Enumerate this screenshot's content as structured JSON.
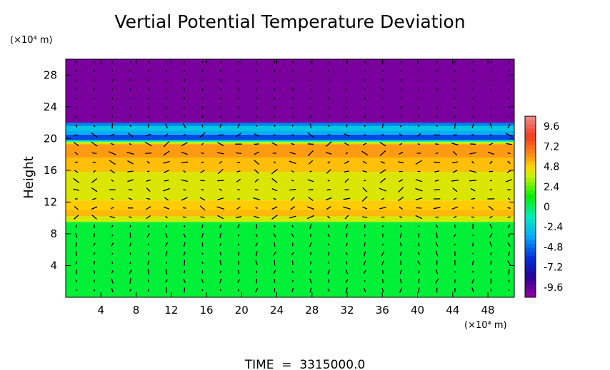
{
  "chart_data": {
    "type": "heatmap",
    "title": "Vertial Potential Temperature Deviation",
    "ylabel": "Height",
    "y_unit": "(×10⁴ m)",
    "x_unit": "(×10⁴ m)",
    "footer": "TIME  =  3315000.0",
    "xlim": [
      0,
      51
    ],
    "ylim": [
      0,
      30
    ],
    "x_ticks": [
      4,
      8,
      12,
      16,
      20,
      24,
      28,
      32,
      36,
      40,
      44,
      48
    ],
    "y_ticks": [
      4,
      8,
      12,
      16,
      20,
      24,
      28
    ],
    "layers": [
      {
        "y0": 0,
        "y1": 9.5,
        "value": 0.5
      },
      {
        "y0": 9.5,
        "y1": 10.2,
        "value": 3.8
      },
      {
        "y0": 10.2,
        "y1": 11.0,
        "value": 5.3
      },
      {
        "y0": 11.0,
        "y1": 12.2,
        "value": 4.9
      },
      {
        "y0": 12.2,
        "y1": 15.8,
        "value": 4.0
      },
      {
        "y0": 15.8,
        "y1": 17.6,
        "value": 5.2
      },
      {
        "y0": 17.6,
        "y1": 19.3,
        "value": 5.9
      },
      {
        "y0": 19.3,
        "y1": 19.6,
        "value": 3.5
      },
      {
        "y0": 19.6,
        "y1": 19.8,
        "value": -1.5
      },
      {
        "y0": 19.8,
        "y1": 20.5,
        "value": -5.5
      },
      {
        "y0": 20.5,
        "y1": 21.0,
        "value": -3.5
      },
      {
        "y0": 21.0,
        "y1": 21.6,
        "value": -2.5
      },
      {
        "y0": 21.6,
        "y1": 22.0,
        "value": -4.5
      },
      {
        "y0": 22.0,
        "y1": 30,
        "value": -10.2
      }
    ],
    "colorbar": {
      "labels": [
        "9.6",
        "7.2",
        "4.8",
        "2.4",
        "0",
        "-2.4",
        "-4.8",
        "-7.2",
        "-9.6"
      ],
      "min": -10.8,
      "max": 10.8
    },
    "vector_field": true,
    "grid": false
  }
}
